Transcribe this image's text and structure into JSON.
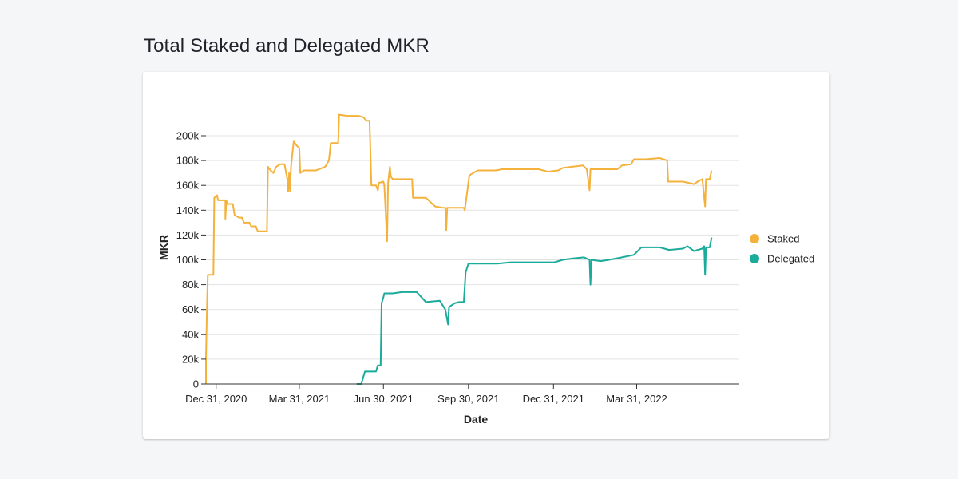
{
  "page": {
    "title": "Total Staked and Delegated MKR"
  },
  "chart_data": {
    "type": "line",
    "title": "Total Staked and Delegated MKR",
    "xlabel": "Date",
    "ylabel": "MKR",
    "ylim": [
      0,
      210000
    ],
    "xlim": [
      "2020-12-20",
      "2022-07-20"
    ],
    "grid": true,
    "legend_position": "right",
    "x_ticks": [
      {
        "date": "2020-12-31",
        "label": "Dec 31, 2020"
      },
      {
        "date": "2021-03-31",
        "label": "Mar 31, 2021"
      },
      {
        "date": "2021-06-30",
        "label": "Jun 30, 2021"
      },
      {
        "date": "2021-09-30",
        "label": "Sep 30, 2021"
      },
      {
        "date": "2021-12-31",
        "label": "Dec 31, 2021"
      },
      {
        "date": "2022-03-31",
        "label": "Mar 31, 2022"
      }
    ],
    "y_ticks": [
      {
        "value": 0,
        "label": "0"
      },
      {
        "value": 20000,
        "label": "20k"
      },
      {
        "value": 40000,
        "label": "40k"
      },
      {
        "value": 60000,
        "label": "60k"
      },
      {
        "value": 80000,
        "label": "80k"
      },
      {
        "value": 100000,
        "label": "100k"
      },
      {
        "value": 120000,
        "label": "120k"
      },
      {
        "value": 140000,
        "label": "140k"
      },
      {
        "value": 160000,
        "label": "160k"
      },
      {
        "value": 180000,
        "label": "180k"
      },
      {
        "value": 200000,
        "label": "200k"
      }
    ],
    "series": [
      {
        "name": "Staked",
        "color": "#f4b23c",
        "points": [
          [
            "2020-12-20",
            0
          ],
          [
            "2020-12-20",
            20000
          ],
          [
            "2020-12-21",
            60000
          ],
          [
            "2020-12-22",
            88000
          ],
          [
            "2020-12-28",
            88000
          ],
          [
            "2020-12-29",
            150000
          ],
          [
            "2021-01-01",
            152000
          ],
          [
            "2021-01-02",
            148000
          ],
          [
            "2021-01-10",
            148000
          ],
          [
            "2021-01-10",
            133000
          ],
          [
            "2021-01-11",
            148000
          ],
          [
            "2021-01-12",
            145000
          ],
          [
            "2021-01-18",
            145000
          ],
          [
            "2021-01-20",
            136000
          ],
          [
            "2021-01-25",
            134000
          ],
          [
            "2021-01-28",
            134000
          ],
          [
            "2021-01-30",
            130000
          ],
          [
            "2021-02-05",
            130000
          ],
          [
            "2021-02-07",
            127000
          ],
          [
            "2021-02-12",
            127000
          ],
          [
            "2021-02-14",
            123000
          ],
          [
            "2021-02-24",
            123000
          ],
          [
            "2021-02-25",
            175000
          ],
          [
            "2021-02-28",
            172000
          ],
          [
            "2021-03-03",
            170000
          ],
          [
            "2021-03-06",
            175000
          ],
          [
            "2021-03-10",
            177000
          ],
          [
            "2021-03-15",
            177000
          ],
          [
            "2021-03-18",
            165000
          ],
          [
            "2021-03-19",
            155000
          ],
          [
            "2021-03-20",
            170000
          ],
          [
            "2021-03-21",
            155000
          ],
          [
            "2021-03-22",
            175000
          ],
          [
            "2021-03-25",
            196000
          ],
          [
            "2021-03-27",
            193000
          ],
          [
            "2021-03-31",
            190000
          ],
          [
            "2021-04-01",
            170000
          ],
          [
            "2021-04-05",
            172000
          ],
          [
            "2021-04-18",
            172000
          ],
          [
            "2021-04-28",
            175000
          ],
          [
            "2021-05-02",
            180000
          ],
          [
            "2021-05-04",
            194000
          ],
          [
            "2021-05-12",
            194000
          ],
          [
            "2021-05-13",
            217000
          ],
          [
            "2021-05-22",
            216000
          ],
          [
            "2021-06-03",
            216000
          ],
          [
            "2021-06-08",
            215000
          ],
          [
            "2021-06-12",
            212000
          ],
          [
            "2021-06-15",
            212000
          ],
          [
            "2021-06-17",
            160000
          ],
          [
            "2021-06-22",
            160000
          ],
          [
            "2021-06-24",
            156000
          ],
          [
            "2021-06-25",
            162000
          ],
          [
            "2021-06-30",
            163000
          ],
          [
            "2021-07-01",
            160000
          ],
          [
            "2021-07-04",
            115000
          ],
          [
            "2021-07-05",
            162000
          ],
          [
            "2021-07-07",
            175000
          ],
          [
            "2021-07-08",
            167000
          ],
          [
            "2021-07-10",
            165000
          ],
          [
            "2021-07-31",
            165000
          ],
          [
            "2021-08-01",
            150000
          ],
          [
            "2021-08-15",
            150000
          ],
          [
            "2021-08-25",
            143000
          ],
          [
            "2021-09-02",
            142000
          ],
          [
            "2021-09-05",
            142000
          ],
          [
            "2021-09-06",
            124000
          ],
          [
            "2021-09-07",
            142000
          ],
          [
            "2021-09-25",
            142000
          ],
          [
            "2021-09-26",
            140000
          ],
          [
            "2021-10-01",
            168000
          ],
          [
            "2021-10-05",
            170000
          ],
          [
            "2021-10-10",
            172000
          ],
          [
            "2021-10-30",
            172000
          ],
          [
            "2021-11-05",
            173000
          ],
          [
            "2021-11-30",
            173000
          ],
          [
            "2021-12-15",
            173000
          ],
          [
            "2021-12-25",
            171000
          ],
          [
            "2022-01-05",
            172000
          ],
          [
            "2022-01-10",
            174000
          ],
          [
            "2022-01-20",
            175000
          ],
          [
            "2022-02-01",
            176000
          ],
          [
            "2022-02-05",
            173000
          ],
          [
            "2022-02-08",
            156000
          ],
          [
            "2022-02-09",
            173000
          ],
          [
            "2022-03-01",
            173000
          ],
          [
            "2022-03-10",
            173000
          ],
          [
            "2022-03-15",
            176000
          ],
          [
            "2022-03-25",
            177000
          ],
          [
            "2022-03-28",
            181000
          ],
          [
            "2022-04-10",
            181000
          ],
          [
            "2022-04-25",
            182000
          ],
          [
            "2022-05-03",
            180000
          ],
          [
            "2022-05-04",
            163000
          ],
          [
            "2022-05-20",
            163000
          ],
          [
            "2022-06-01",
            161000
          ],
          [
            "2022-06-05",
            163000
          ],
          [
            "2022-06-10",
            165000
          ],
          [
            "2022-06-13",
            143000
          ],
          [
            "2022-06-14",
            165000
          ],
          [
            "2022-06-18",
            165000
          ],
          [
            "2022-06-20",
            172000
          ]
        ]
      },
      {
        "name": "Delegated",
        "color": "#1aab9b",
        "points": [
          [
            "2021-06-01",
            0
          ],
          [
            "2021-06-06",
            0
          ],
          [
            "2021-06-10",
            10000
          ],
          [
            "2021-06-22",
            10000
          ],
          [
            "2021-06-24",
            15000
          ],
          [
            "2021-06-27",
            15000
          ],
          [
            "2021-06-28",
            65000
          ],
          [
            "2021-06-30",
            70000
          ],
          [
            "2021-07-01",
            73000
          ],
          [
            "2021-07-10",
            73000
          ],
          [
            "2021-07-20",
            74000
          ],
          [
            "2021-08-05",
            74000
          ],
          [
            "2021-08-10",
            70000
          ],
          [
            "2021-08-15",
            66000
          ],
          [
            "2021-08-30",
            67000
          ],
          [
            "2021-09-05",
            60000
          ],
          [
            "2021-09-08",
            48000
          ],
          [
            "2021-09-09",
            62000
          ],
          [
            "2021-09-15",
            65000
          ],
          [
            "2021-09-20",
            66000
          ],
          [
            "2021-09-25",
            66000
          ],
          [
            "2021-09-27",
            90000
          ],
          [
            "2021-09-30",
            97000
          ],
          [
            "2021-10-31",
            97000
          ],
          [
            "2021-11-15",
            98000
          ],
          [
            "2021-12-15",
            98000
          ],
          [
            "2022-01-01",
            98000
          ],
          [
            "2022-01-10",
            100000
          ],
          [
            "2022-01-20",
            101000
          ],
          [
            "2022-02-02",
            102000
          ],
          [
            "2022-02-08",
            100000
          ],
          [
            "2022-02-09",
            80000
          ],
          [
            "2022-02-10",
            100000
          ],
          [
            "2022-02-20",
            99000
          ],
          [
            "2022-03-01",
            100000
          ],
          [
            "2022-03-15",
            102000
          ],
          [
            "2022-03-28",
            104000
          ],
          [
            "2022-04-05",
            110000
          ],
          [
            "2022-04-25",
            110000
          ],
          [
            "2022-05-05",
            108000
          ],
          [
            "2022-05-20",
            109000
          ],
          [
            "2022-05-25",
            111000
          ],
          [
            "2022-06-01",
            107000
          ],
          [
            "2022-06-05",
            108000
          ],
          [
            "2022-06-10",
            109000
          ],
          [
            "2022-06-12",
            111000
          ],
          [
            "2022-06-13",
            88000
          ],
          [
            "2022-06-14",
            110000
          ],
          [
            "2022-06-18",
            110000
          ],
          [
            "2022-06-20",
            118000
          ]
        ]
      }
    ]
  }
}
